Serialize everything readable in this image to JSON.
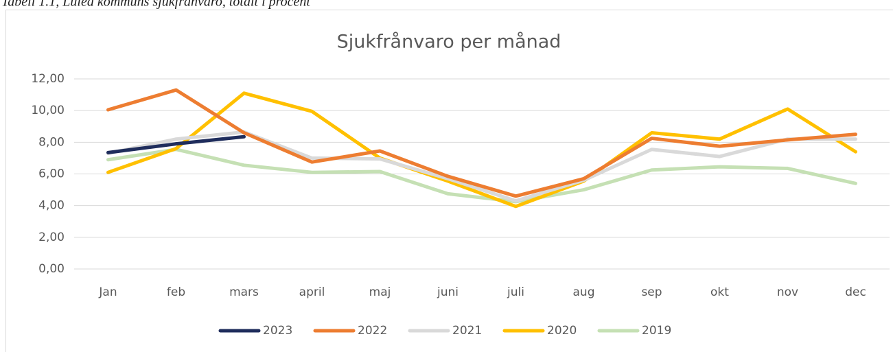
{
  "caption": "Tabell 1.1, Luleå kommuns sjukfrånvaro, totalt i procent",
  "chart_data": {
    "type": "line",
    "title": "Sjukfrånvaro per månad",
    "categories": [
      "Jan",
      "feb",
      "mars",
      "april",
      "maj",
      "juni",
      "juli",
      "aug",
      "sep",
      "okt",
      "nov",
      "dec"
    ],
    "series": [
      {
        "name": "2023",
        "color": "#1f2d5c",
        "values": [
          7.35,
          7.9,
          8.35,
          null,
          null,
          null,
          null,
          null,
          null,
          null,
          null,
          null
        ]
      },
      {
        "name": "2022",
        "color": "#ed7d31",
        "values": [
          10.05,
          11.3,
          8.6,
          6.75,
          7.45,
          5.85,
          4.6,
          5.7,
          8.25,
          7.75,
          8.15,
          8.5
        ]
      },
      {
        "name": "2021",
        "color": "#d9d9d9",
        "values": [
          7.3,
          8.2,
          8.65,
          7.0,
          6.95,
          5.7,
          4.3,
          5.6,
          7.55,
          7.1,
          8.2,
          8.2
        ]
      },
      {
        "name": "2020",
        "color": "#ffc000",
        "values": [
          6.1,
          7.6,
          11.1,
          9.95,
          7.0,
          5.55,
          3.95,
          5.55,
          8.6,
          8.2,
          10.1,
          7.4
        ]
      },
      {
        "name": "2019",
        "color": "#c5e0b4",
        "values": [
          6.9,
          7.55,
          6.55,
          6.1,
          6.15,
          4.75,
          4.25,
          5.0,
          6.25,
          6.45,
          6.35,
          5.4
        ]
      }
    ],
    "ylim": [
      0,
      12
    ],
    "yticks": [
      {
        "value": 0,
        "label": "0,00"
      },
      {
        "value": 2,
        "label": "2,00"
      },
      {
        "value": 4,
        "label": "4,00"
      },
      {
        "value": 6,
        "label": "6,00"
      },
      {
        "value": 8,
        "label": "8,00"
      },
      {
        "value": 10,
        "label": "10,00"
      },
      {
        "value": 12,
        "label": "12,00"
      }
    ],
    "grid": true,
    "legend": "bottom"
  }
}
